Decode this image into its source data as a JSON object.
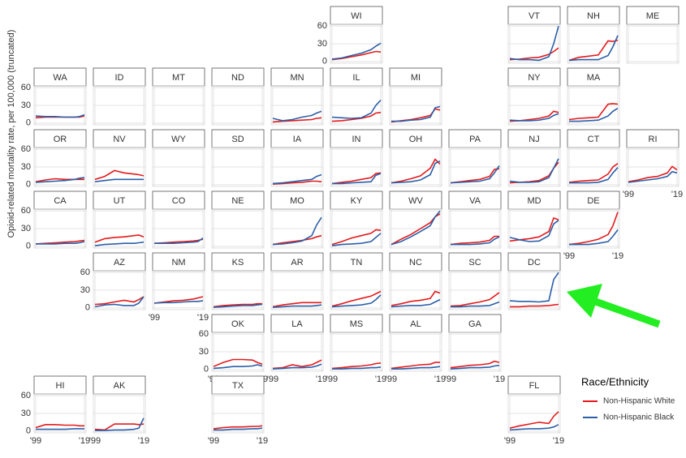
{
  "chart_data": {
    "type": "line",
    "y_label": "Opioid-related mortality rate, per 100,000 (truncated)",
    "legend_title": "Race/Ethnicity",
    "series": [
      {
        "name": "Non-Hispanic White",
        "color": "#e41a1c"
      },
      {
        "name": "Non-Hispanic Black",
        "color": "#2b5fa8"
      }
    ],
    "x": [
      1999,
      2003,
      2007,
      2011,
      2015,
      2017,
      2019
    ],
    "xlim": [
      1999,
      2019
    ],
    "xticks": [
      {
        "value": 1999,
        "label": "'99"
      },
      {
        "value": 2019,
        "label": "'19"
      }
    ],
    "ylim": [
      -3,
      63
    ],
    "yticks": [
      0,
      30,
      60
    ],
    "grid": true,
    "panels": [
      {
        "label": "WI",
        "white": [
          3,
          5,
          8,
          11,
          15,
          17,
          16
        ],
        "black": [
          4,
          6,
          10,
          14,
          20,
          26,
          31
        ]
      },
      {
        "label": "VT",
        "white": [
          3,
          4,
          6,
          7,
          12,
          17,
          23
        ],
        "black": [
          5,
          3,
          3,
          2,
          8,
          30,
          60
        ]
      },
      {
        "label": "NH",
        "white": [
          2,
          7,
          9,
          11,
          35,
          34,
          36
        ],
        "black": [
          2,
          3,
          3,
          3,
          10,
          25,
          44
        ]
      },
      {
        "label": "ME"
      },
      {
        "label": "WA",
        "white": [
          9,
          10,
          10,
          10,
          10,
          10,
          12
        ],
        "black": [
          12,
          11,
          11,
          10,
          10,
          11,
          14
        ]
      },
      {
        "label": "ID"
      },
      {
        "label": "MT"
      },
      {
        "label": "ND"
      },
      {
        "label": "MN",
        "white": [
          2,
          3,
          4,
          5,
          6,
          8,
          9
        ],
        "black": [
          8,
          4,
          6,
          10,
          13,
          17,
          20
        ]
      },
      {
        "label": "IL",
        "white": [
          3,
          4,
          6,
          8,
          12,
          17,
          18
        ],
        "black": [
          10,
          9,
          8,
          9,
          17,
          30,
          39
        ]
      },
      {
        "label": "MI",
        "white": [
          2,
          4,
          6,
          9,
          13,
          24,
          22
        ],
        "black": [
          3,
          3,
          5,
          6,
          10,
          26,
          28
        ]
      },
      {
        "label": "NY",
        "white": [
          3,
          4,
          6,
          8,
          12,
          20,
          18
        ],
        "black": [
          5,
          4,
          4,
          5,
          8,
          13,
          16
        ]
      },
      {
        "label": "MA",
        "white": [
          6,
          8,
          9,
          10,
          32,
          33,
          32
        ],
        "black": [
          3,
          3,
          4,
          5,
          12,
          20,
          25
        ]
      },
      {
        "label": "OR",
        "white": [
          5,
          8,
          10,
          9,
          9,
          9,
          9
        ],
        "black": [
          4,
          5,
          6,
          7,
          9,
          11,
          12
        ]
      },
      {
        "label": "NV",
        "white": [
          9,
          14,
          24,
          20,
          18,
          17,
          15
        ],
        "black": [
          5,
          7,
          9,
          9,
          9,
          9,
          9
        ]
      },
      {
        "label": "WY"
      },
      {
        "label": "SD"
      },
      {
        "label": "IA",
        "white": [
          1,
          2,
          3,
          4,
          6,
          6,
          5
        ],
        "black": [
          2,
          3,
          5,
          7,
          9,
          14,
          17
        ]
      },
      {
        "label": "IN",
        "white": [
          2,
          4,
          6,
          9,
          12,
          19,
          20
        ],
        "black": [
          2,
          2,
          3,
          4,
          5,
          16,
          19
        ]
      },
      {
        "label": "OH",
        "white": [
          3,
          6,
          10,
          15,
          28,
          43,
          35
        ],
        "black": [
          3,
          4,
          5,
          8,
          17,
          36,
          40
        ]
      },
      {
        "label": "PA",
        "white": [
          3,
          5,
          7,
          9,
          14,
          26,
          27
        ],
        "black": [
          3,
          4,
          5,
          6,
          10,
          20,
          32
        ]
      },
      {
        "label": "NJ",
        "white": [
          3,
          4,
          5,
          7,
          15,
          28,
          38
        ],
        "black": [
          6,
          4,
          4,
          5,
          12,
          28,
          44
        ]
      },
      {
        "label": "CT",
        "white": [
          4,
          6,
          7,
          8,
          18,
          30,
          36
        ],
        "black": [
          3,
          3,
          3,
          4,
          9,
          20,
          29
        ]
      },
      {
        "label": "RI",
        "white": [
          5,
          8,
          12,
          14,
          20,
          31,
          25
        ],
        "black": [
          4,
          6,
          8,
          10,
          14,
          22,
          20
        ]
      },
      {
        "label": "CA",
        "white": [
          4,
          5,
          6,
          7,
          8,
          9,
          10
        ],
        "black": [
          4,
          4,
          4,
          5,
          5,
          6,
          8
        ]
      },
      {
        "label": "UT",
        "white": [
          7,
          13,
          15,
          16,
          18,
          19,
          16
        ],
        "black": [
          1,
          3,
          4,
          5,
          5,
          6,
          7
        ]
      },
      {
        "label": "CO",
        "white": [
          5,
          6,
          7,
          8,
          9,
          10,
          12
        ],
        "black": [
          5,
          5,
          5,
          6,
          7,
          8,
          14
        ]
      },
      {
        "label": "NE"
      },
      {
        "label": "MO",
        "white": [
          3,
          6,
          8,
          10,
          13,
          16,
          18
        ],
        "black": [
          3,
          4,
          6,
          9,
          18,
          36,
          49
        ]
      },
      {
        "label": "KY",
        "white": [
          3,
          8,
          14,
          18,
          22,
          28,
          27
        ],
        "black": [
          1,
          3,
          4,
          5,
          8,
          15,
          22
        ]
      },
      {
        "label": "WV",
        "white": [
          3,
          12,
          20,
          30,
          40,
          50,
          55
        ],
        "black": [
          3,
          8,
          16,
          25,
          35,
          50,
          60
        ]
      },
      {
        "label": "VA",
        "white": [
          3,
          5,
          6,
          7,
          10,
          17,
          17
        ],
        "black": [
          3,
          3,
          3,
          4,
          6,
          12,
          16
        ]
      },
      {
        "label": "MD",
        "white": [
          9,
          11,
          13,
          16,
          25,
          48,
          45
        ],
        "black": [
          15,
          11,
          8,
          9,
          18,
          38,
          44
        ]
      },
      {
        "label": "DE",
        "white": [
          3,
          5,
          8,
          12,
          20,
          35,
          58
        ],
        "black": [
          3,
          3,
          3,
          5,
          8,
          17,
          28
        ]
      },
      {
        "label": "AZ",
        "white": [
          6,
          7,
          10,
          13,
          10,
          14,
          19
        ],
        "black": [
          2,
          5,
          6,
          4,
          4,
          8,
          19
        ]
      },
      {
        "label": "NM",
        "white": [
          8,
          10,
          12,
          13,
          15,
          17,
          19
        ],
        "black": [
          8,
          9,
          9,
          10,
          11,
          11,
          12
        ]
      },
      {
        "label": "KS",
        "white": [
          2,
          4,
          5,
          6,
          6,
          7,
          7
        ],
        "black": [
          1,
          2,
          3,
          4,
          4,
          5,
          6
        ]
      },
      {
        "label": "AR",
        "white": [
          2,
          5,
          7,
          9,
          9,
          9,
          9
        ],
        "black": [
          1,
          2,
          3,
          3,
          3,
          4,
          5
        ]
      },
      {
        "label": "TN",
        "white": [
          3,
          7,
          12,
          16,
          20,
          24,
          28
        ],
        "black": [
          2,
          3,
          4,
          5,
          8,
          14,
          22
        ]
      },
      {
        "label": "NC",
        "white": [
          4,
          7,
          11,
          13,
          16,
          28,
          25
        ],
        "black": [
          2,
          3,
          4,
          4,
          6,
          10,
          14
        ]
      },
      {
        "label": "SC",
        "white": [
          3,
          4,
          7,
          10,
          14,
          20,
          26
        ],
        "black": [
          2,
          2,
          3,
          3,
          4,
          7,
          10
        ]
      },
      {
        "label": "DC",
        "white": [
          2,
          2,
          3,
          3,
          4,
          5,
          6
        ],
        "black": [
          12,
          11,
          11,
          10,
          12,
          48,
          60
        ]
      },
      {
        "label": "OK",
        "white": [
          5,
          12,
          17,
          17,
          16,
          12,
          9
        ],
        "black": [
          2,
          3,
          5,
          5,
          6,
          8,
          6
        ]
      },
      {
        "label": "LA",
        "white": [
          2,
          3,
          8,
          5,
          8,
          12,
          16
        ],
        "black": [
          1,
          2,
          3,
          3,
          4,
          6,
          9
        ]
      },
      {
        "label": "MS",
        "white": [
          2,
          3,
          5,
          6,
          8,
          10,
          11
        ],
        "black": [
          1,
          1,
          2,
          2,
          3,
          3,
          4
        ]
      },
      {
        "label": "AL",
        "white": [
          2,
          4,
          6,
          8,
          9,
          12,
          12
        ],
        "black": [
          1,
          1,
          2,
          3,
          3,
          4,
          5
        ]
      },
      {
        "label": "GA",
        "white": [
          3,
          5,
          7,
          8,
          10,
          14,
          12
        ],
        "black": [
          1,
          2,
          3,
          3,
          4,
          6,
          7
        ]
      },
      {
        "label": "HI",
        "white": [
          6,
          11,
          11,
          10,
          10,
          9,
          9
        ],
        "black": [
          3,
          3,
          3,
          3,
          4,
          4,
          4
        ]
      },
      {
        "label": "AK",
        "white": [
          3,
          2,
          12,
          12,
          12,
          11,
          12
        ],
        "black": [
          1,
          1,
          2,
          2,
          3,
          5,
          22
        ]
      },
      {
        "label": "TX",
        "white": [
          4,
          6,
          7,
          7,
          8,
          8,
          9
        ],
        "black": [
          2,
          2,
          3,
          3,
          4,
          4,
          5
        ]
      },
      {
        "label": "FL",
        "white": [
          5,
          9,
          12,
          15,
          13,
          25,
          33
        ],
        "black": [
          2,
          3,
          4,
          4,
          5,
          7,
          11
        ]
      }
    ]
  }
}
